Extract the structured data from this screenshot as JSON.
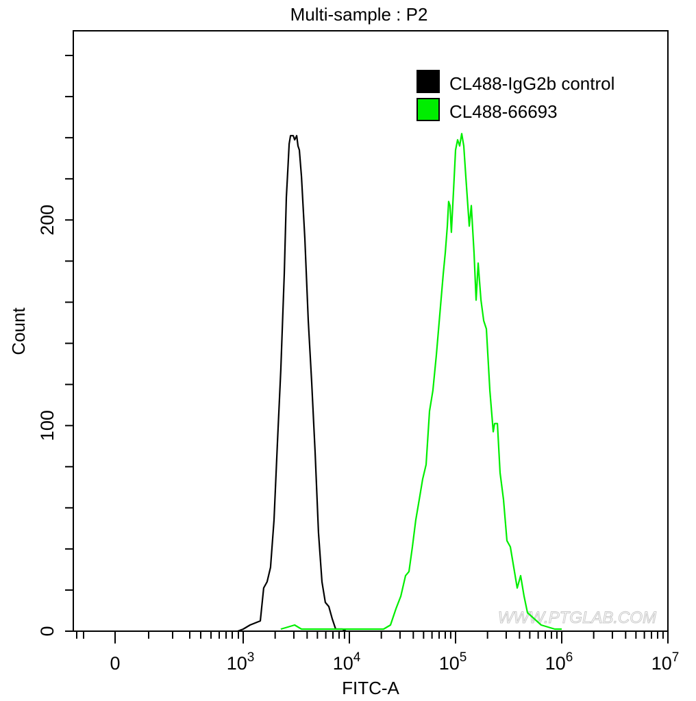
{
  "chart_data": {
    "type": "line",
    "title": "Multi-sample : P2",
    "xlabel": "FITC-A",
    "ylabel": "Count",
    "x_scale": "biexponential (log above 10^3)",
    "x_ticks": [
      {
        "value": 0,
        "base": "0",
        "exp": ""
      },
      {
        "value": 1000,
        "base": "10",
        "exp": "3"
      },
      {
        "value": 10000,
        "base": "10",
        "exp": "4"
      },
      {
        "value": 100000,
        "base": "10",
        "exp": "5"
      },
      {
        "value": 1000000,
        "base": "10",
        "exp": "6"
      },
      {
        "value": 10000000,
        "base": "10",
        "exp": "7"
      }
    ],
    "y_ticks": [
      "0",
      "100",
      "200"
    ],
    "ylim": [
      0,
      292
    ],
    "xlim": [
      -300,
      10000000
    ],
    "grid": false,
    "legend_position": "top-right",
    "watermark": "WWW.PTGLAB.COM",
    "series": [
      {
        "name": "CL488-IgG2b control",
        "color": "#000000",
        "x": [
          930,
          1000,
          1160,
          1450,
          1560,
          1680,
          1810,
          1950,
          2100,
          2260,
          2440,
          2550,
          2630,
          2710,
          2790,
          2960,
          3050,
          3190,
          3280,
          3380,
          3540,
          3810,
          4100,
          4420,
          4760,
          5120,
          5520,
          5940,
          6400,
          6900,
          7430,
          8610,
          9290
        ],
        "y": [
          0,
          1,
          3,
          5,
          21,
          24,
          31,
          54,
          91,
          127,
          174,
          211,
          224,
          237,
          241,
          241,
          239,
          241,
          236,
          234,
          221,
          191,
          151,
          121,
          87,
          48,
          24,
          14,
          12,
          6,
          1,
          1,
          0
        ]
      },
      {
        "name": "CL488-66693",
        "color": "#00ee00",
        "x": [
          2260,
          2630,
          3050,
          3540,
          5520,
          8610,
          13500,
          16800,
          21000,
          24400,
          27500,
          30500,
          33800,
          36400,
          39200,
          42200,
          45500,
          49000,
          52800,
          56900,
          61200,
          65900,
          71100,
          76600,
          80000,
          83700,
          86100,
          88700,
          91400,
          95700,
          100000,
          104500,
          109300,
          114300,
          119500,
          125000,
          134600,
          140700,
          149300,
          156200,
          163300,
          173400,
          184100,
          195000,
          210400,
          226500,
          233300,
          247700,
          262500,
          283000,
          304800,
          328300,
          353400,
          380700,
          410000,
          441700,
          475600,
          552000,
          640000,
          743000,
          861000,
          1000000
        ],
        "y": [
          1,
          2,
          3,
          1,
          1,
          1,
          1,
          1,
          1,
          3,
          11,
          17,
          27,
          29,
          41,
          54,
          64,
          74,
          81,
          107,
          117,
          134,
          154,
          174,
          184,
          197,
          209,
          207,
          194,
          214,
          234,
          239,
          236,
          242,
          236,
          221,
          197,
          207,
          184,
          161,
          179,
          161,
          151,
          147,
          117,
          97,
          101,
          101,
          77,
          64,
          44,
          41,
          31,
          21,
          27,
          17,
          9,
          6,
          3,
          2,
          1,
          1
        ]
      }
    ]
  }
}
